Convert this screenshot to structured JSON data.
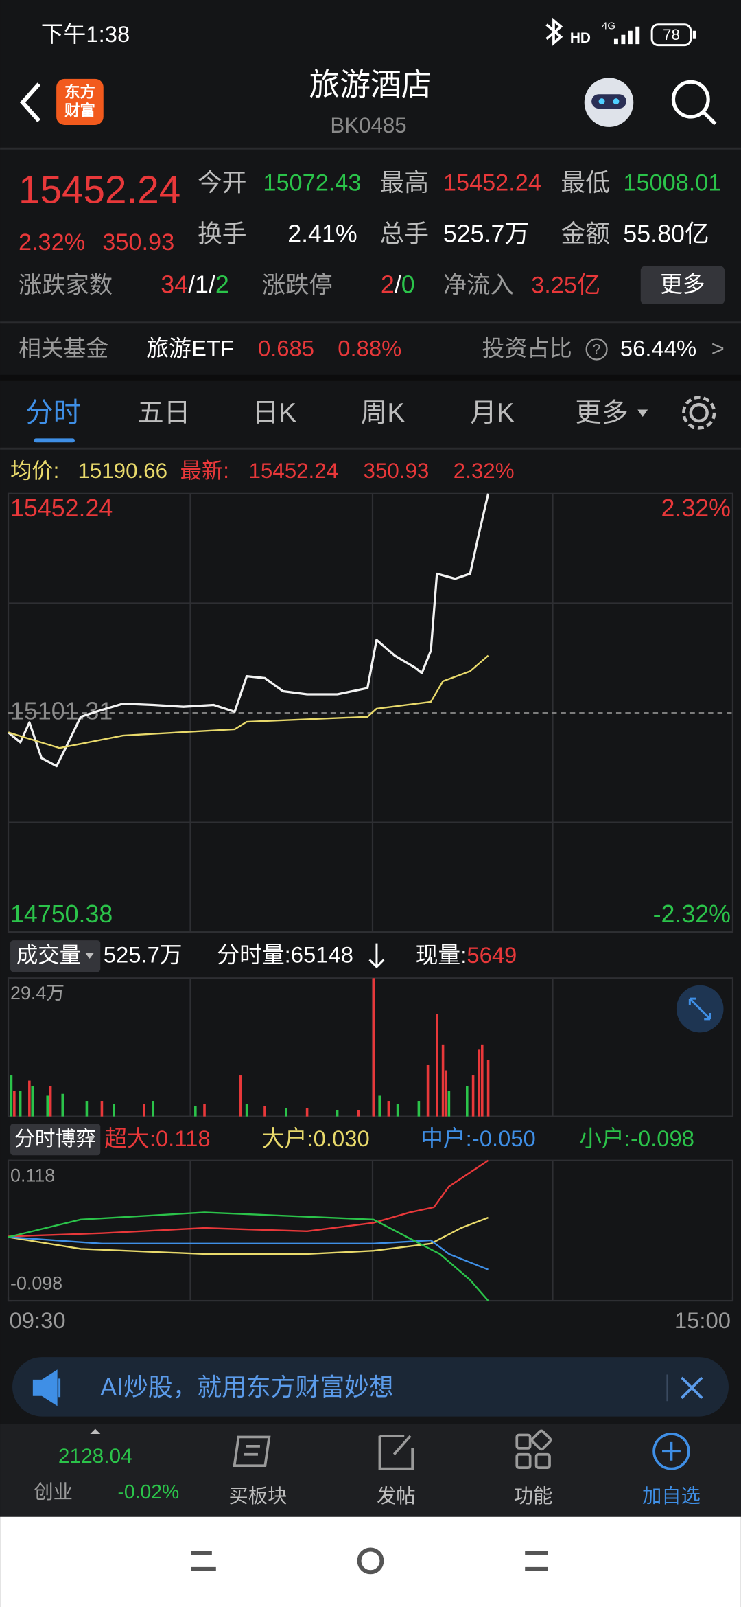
{
  "status_bar": {
    "time": "下午1:38",
    "network": "4G",
    "battery": "78"
  },
  "header": {
    "logo_top": "东方",
    "logo_bottom": "财富",
    "title": "旅游酒店",
    "code": "BK0485"
  },
  "quote": {
    "price": "15452.24",
    "change_pct": "2.32%",
    "change": "350.93",
    "stats": [
      {
        "label": "今开",
        "value": "15072.43"
      },
      {
        "label": "最高",
        "value": "15452.24"
      },
      {
        "label": "最低",
        "value": "15008.01"
      },
      {
        "label": "换手",
        "value": "2.41%"
      },
      {
        "label": "总手",
        "value": "525.7万"
      },
      {
        "label": "金额",
        "value": "55.80亿"
      }
    ],
    "breadth": {
      "label": "涨跌家数",
      "up": "34",
      "flat": "1",
      "down": "2",
      "sep": "/"
    },
    "limit": {
      "label": "涨跌停",
      "up": "2",
      "down": "0"
    },
    "netflow": {
      "label": "净流入",
      "value": "3.25亿"
    },
    "more": "更多"
  },
  "fund": {
    "label": "相关基金",
    "name": "旅游ETF",
    "price": "0.685",
    "pct": "0.88%",
    "ratio_label": "投资占比",
    "help": "?",
    "ratio": "56.44%",
    "arrow": ">"
  },
  "tabs": [
    "分时",
    "五日",
    "日K",
    "周K",
    "月K",
    "更多"
  ],
  "legend_line": {
    "avg_label": "均价:",
    "avg": "15190.66",
    "last_label": "最新:",
    "last": "15452.24",
    "chg": "350.93",
    "pct": "2.32%"
  },
  "chart_data": [
    {
      "type": "line",
      "xlim": [
        0,
        240
      ],
      "ylim": [
        14750.38,
        15452.24
      ],
      "yticks": [
        14750.38,
        15101.31,
        15452.24
      ],
      "y2lim": [
        -2.32,
        2.32
      ],
      "y2ticks": [
        {
          "value": 2.32,
          "label": "2.32%"
        },
        {
          "value": -2.32,
          "label": "-2.32%"
        }
      ],
      "series": [
        {
          "color": "#f2f2f2",
          "x": [
            0,
            4,
            7,
            11,
            16,
            19,
            24,
            29,
            38,
            48,
            58,
            68,
            75,
            79,
            85,
            91,
            99,
            109,
            119,
            122,
            128,
            135,
            137,
            140,
            142,
            148,
            153,
            156,
            159
          ],
          "values": [
            15070,
            15054,
            15086,
            15029,
            15016,
            15045,
            15095,
            15103,
            15116,
            15114,
            15111,
            15114,
            15103,
            15160,
            15157,
            15136,
            15131,
            15131,
            15141,
            15218,
            15193,
            15173,
            15165,
            15201,
            15324,
            15316,
            15324,
            15390,
            15452.24
          ]
        },
        {
          "color": "#e8d96b",
          "x": [
            0,
            17,
            38,
            75,
            79,
            119,
            122,
            140,
            144,
            153,
            159
          ],
          "values": [
            15070,
            15045,
            15065,
            15075,
            15087,
            15095,
            15108,
            15119,
            15152,
            15168,
            15193
          ]
        }
      ]
    },
    {
      "type": "bar",
      "header": {
        "label": "成交量",
        "total": "525.7万",
        "minute_volume": "分时量:65148",
        "current_label": "现量:",
        "current": "5649"
      },
      "xlim": [
        0,
        240
      ],
      "ylim": [
        0,
        29.4
      ],
      "yticks": [
        {
          "value": 29.4,
          "label": "29.4万"
        }
      ],
      "series": [
        {
          "color": "#e8383a",
          "x": [
            2,
            7,
            14,
            31,
            45,
            65,
            77,
            85,
            99,
            116,
            121,
            126,
            139,
            142,
            144,
            145,
            154,
            156,
            157,
            159
          ],
          "values": [
            5.4,
            7.6,
            6.5,
            3.3,
            2.6,
            2.6,
            8.7,
            2.2,
            1.7,
            1.3,
            29.4,
            3.3,
            10.9,
            21.8,
            15.3,
            9.8,
            8.7,
            14.2,
            15.3,
            12
          ]
        },
        {
          "color": "#2bc34a",
          "x": [
            1,
            4,
            8,
            13,
            18,
            26,
            35,
            48,
            62,
            79,
            92,
            109,
            123,
            129,
            136,
            146,
            152
          ],
          "values": [
            8.7,
            5.4,
            6.5,
            4.4,
            4.8,
            3.3,
            2.6,
            3.3,
            2.2,
            2.6,
            1.7,
            1.3,
            4.4,
            2.6,
            3.3,
            5.4,
            6.5
          ]
        }
      ]
    },
    {
      "type": "line",
      "header": {
        "label": "分时博弈"
      },
      "xlim": [
        0,
        240
      ],
      "xticks": [
        {
          "value": 0,
          "label": "09:30"
        },
        {
          "value": 240,
          "label": "15:00"
        }
      ],
      "ylim": [
        -0.098,
        0.118
      ],
      "yticks": [
        -0.098,
        0.118
      ],
      "series": [
        {
          "name": "超大:",
          "value_label": "0.118",
          "color": "#e8383a",
          "x": [
            0,
            31,
            65,
            99,
            121,
            133,
            141,
            146,
            159
          ],
          "values": [
            0.001,
            0.006,
            0.014,
            0.009,
            0.022,
            0.038,
            0.046,
            0.078,
            0.118
          ]
        },
        {
          "name": "大户:",
          "value_label": "0.030",
          "color": "#e8d96b",
          "x": [
            0,
            24,
            65,
            99,
            121,
            140,
            150,
            159
          ],
          "values": [
            0,
            -0.018,
            -0.026,
            -0.026,
            -0.021,
            -0.01,
            0.014,
            0.03
          ]
        },
        {
          "name": "中户:",
          "value_label": "-0.050",
          "color": "#3f8fe6",
          "x": [
            0,
            31,
            82,
            121,
            140,
            146,
            159
          ],
          "values": [
            0,
            -0.01,
            -0.01,
            -0.01,
            -0.005,
            -0.026,
            -0.05
          ]
        },
        {
          "name": "小户:",
          "value_label": "-0.098",
          "color": "#2bc34a",
          "x": [
            0,
            24,
            65,
            121,
            133,
            143,
            153,
            159
          ],
          "values": [
            0,
            0.027,
            0.038,
            0.027,
            -0.002,
            -0.026,
            -0.066,
            -0.098
          ]
        }
      ]
    }
  ],
  "banner": {
    "text": "AI炒股，就用东方财富妙想"
  },
  "bottom_nav": {
    "index": {
      "value": "2128.04",
      "name": "创业",
      "pct": "-0.02%"
    },
    "items": [
      "买板块",
      "发帖",
      "功能",
      "加自选"
    ]
  }
}
